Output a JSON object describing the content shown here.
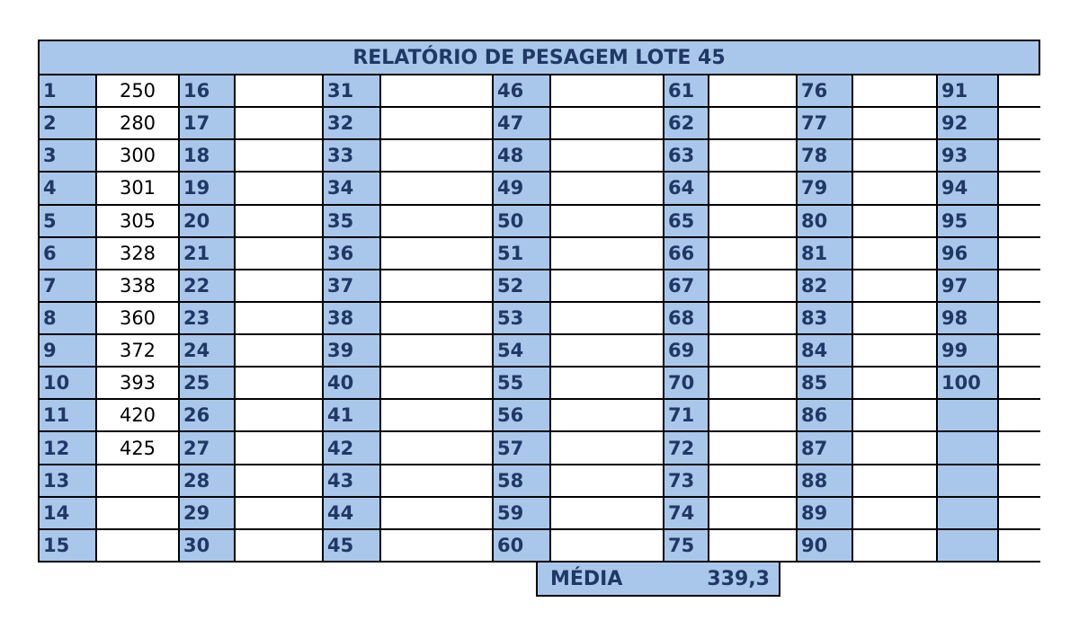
{
  "title": "RELATÓRIO DE PESAGEM LOTE 45",
  "columns": [
    {
      "numbers": [
        "1",
        "2",
        "3",
        "4",
        "5",
        "6",
        "7",
        "8",
        "9",
        "10",
        "11",
        "12",
        "13",
        "14",
        "15"
      ],
      "values": [
        "250",
        "280",
        "300",
        "301",
        "305",
        "328",
        "338",
        "360",
        "372",
        "393",
        "420",
        "425",
        "",
        "",
        ""
      ]
    },
    {
      "numbers": [
        "16",
        "17",
        "18",
        "19",
        "20",
        "21",
        "22",
        "23",
        "24",
        "25",
        "26",
        "27",
        "28",
        "29",
        "30"
      ],
      "values": [
        "",
        "",
        "",
        "",
        "",
        "",
        "",
        "",
        "",
        "",
        "",
        "",
        "",
        "",
        ""
      ]
    },
    {
      "numbers": [
        "31",
        "32",
        "33",
        "34",
        "35",
        "36",
        "37",
        "38",
        "39",
        "40",
        "41",
        "42",
        "43",
        "44",
        "45"
      ],
      "values": [
        "",
        "",
        "",
        "",
        "",
        "",
        "",
        "",
        "",
        "",
        "",
        "",
        "",
        "",
        ""
      ]
    },
    {
      "numbers": [
        "46",
        "47",
        "48",
        "49",
        "50",
        "51",
        "52",
        "53",
        "54",
        "55",
        "56",
        "57",
        "58",
        "59",
        "60"
      ],
      "values": [
        "",
        "",
        "",
        "",
        "",
        "",
        "",
        "",
        "",
        "",
        "",
        "",
        "",
        "",
        ""
      ]
    },
    {
      "numbers": [
        "61",
        "62",
        "63",
        "64",
        "65",
        "66",
        "67",
        "68",
        "69",
        "70",
        "71",
        "72",
        "73",
        "74",
        "75"
      ],
      "values": [
        "",
        "",
        "",
        "",
        "",
        "",
        "",
        "",
        "",
        "",
        "",
        "",
        "",
        "",
        ""
      ]
    },
    {
      "numbers": [
        "76",
        "77",
        "78",
        "79",
        "80",
        "81",
        "82",
        "83",
        "84",
        "85",
        "86",
        "87",
        "88",
        "89",
        "90"
      ],
      "values": [
        "",
        "",
        "",
        "",
        "",
        "",
        "",
        "",
        "",
        "",
        "",
        "",
        "",
        "",
        ""
      ]
    },
    {
      "numbers": [
        "91",
        "92",
        "93",
        "94",
        "95",
        "96",
        "97",
        "98",
        "99",
        "100",
        "",
        "",
        "",
        "",
        ""
      ],
      "values": [
        "",
        "",
        "",
        "",
        "",
        "",
        "",
        "",
        "",
        "",
        "",
        "",
        "",
        "",
        ""
      ]
    }
  ],
  "media": {
    "label": "MÉDIA",
    "value": "339,3"
  },
  "colors": {
    "header_fill": "#a9c7ea",
    "header_text": "#1f3864",
    "border": "#000000"
  }
}
